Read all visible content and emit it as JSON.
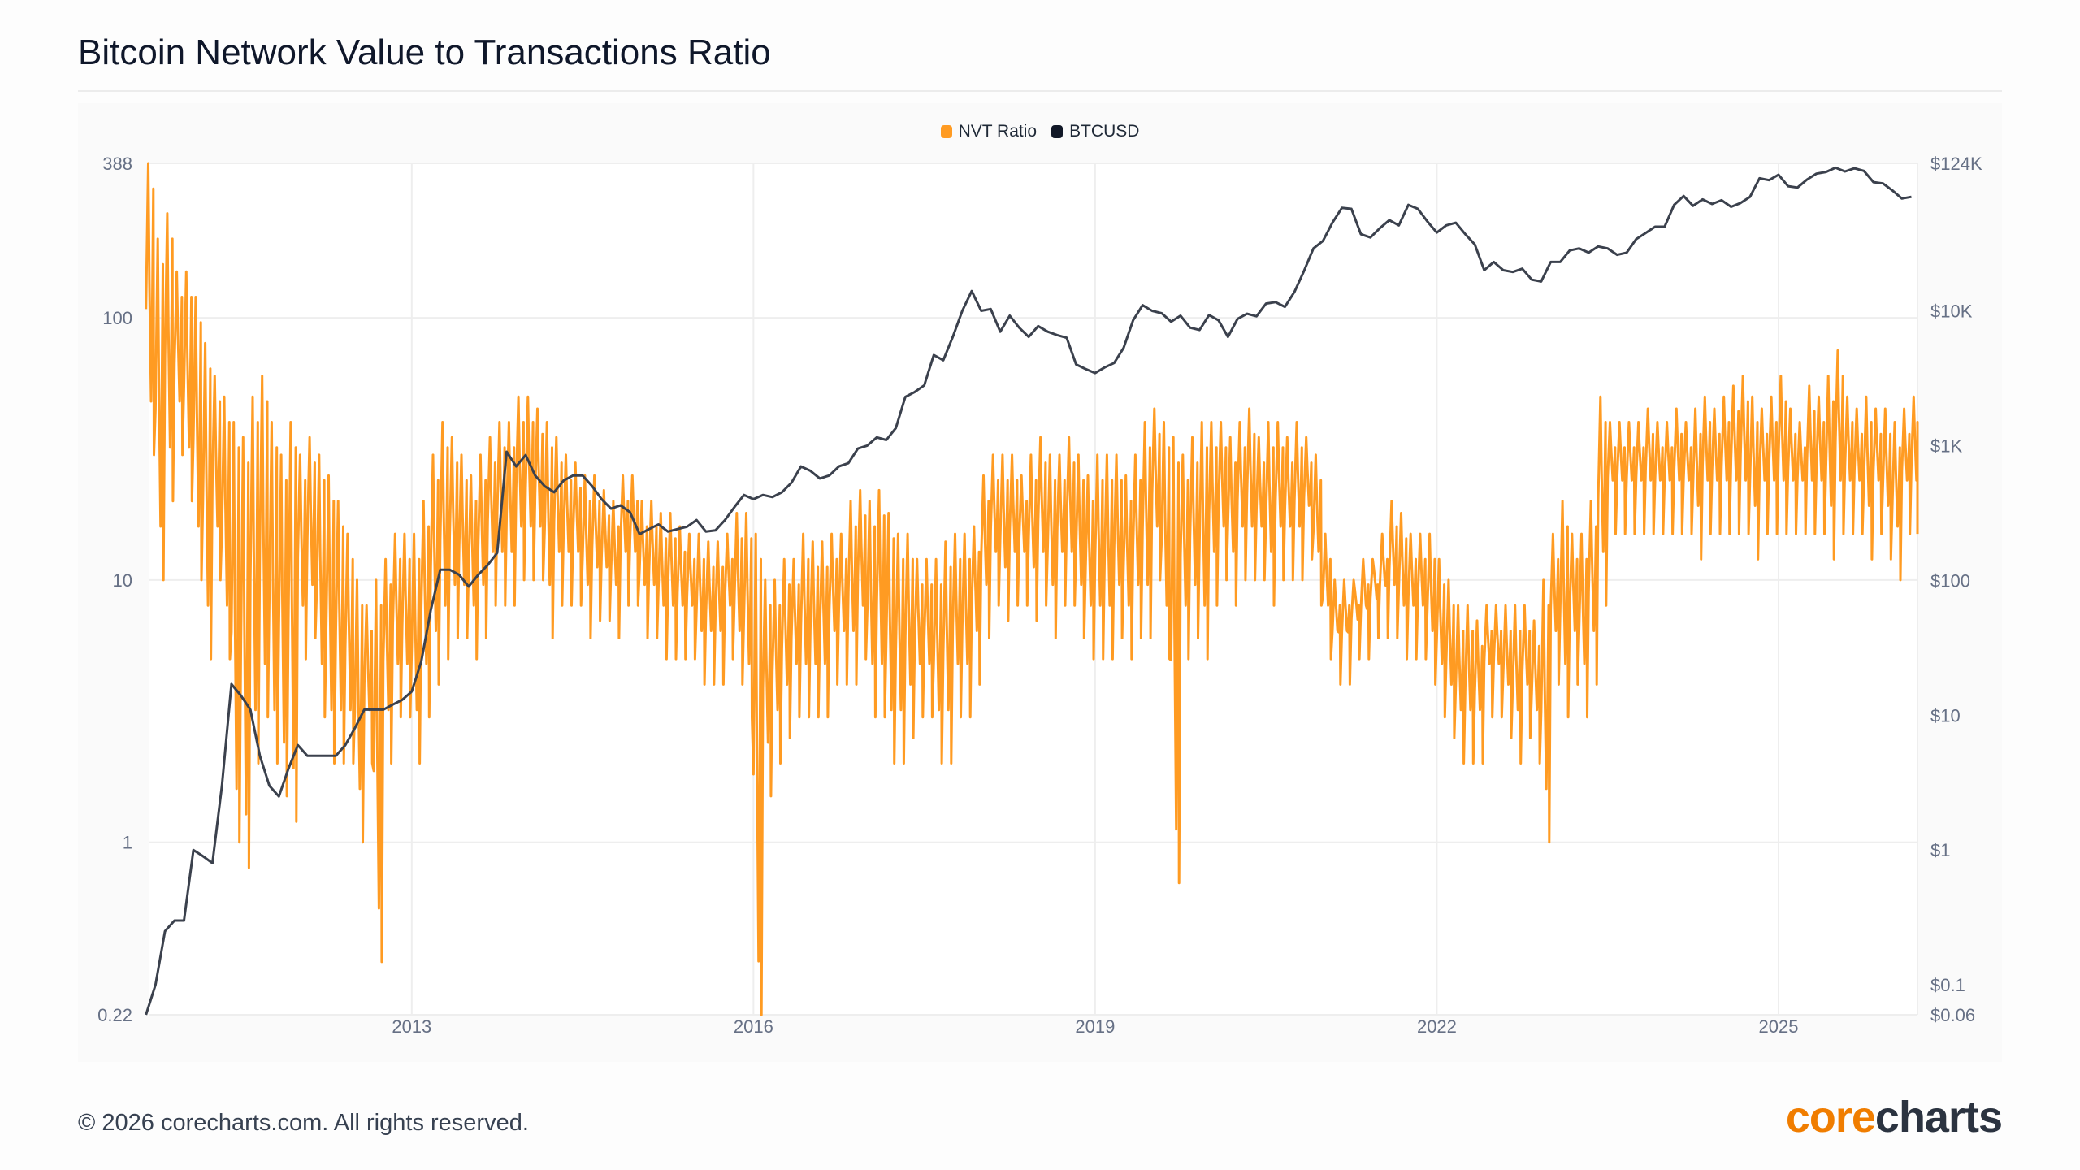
{
  "title": "Bitcoin Network Value to Transactions Ratio",
  "footer": "© 2026 corecharts.com. All rights reserved.",
  "logo": {
    "part1": "core",
    "part2": "charts"
  },
  "watermark": "corecharts",
  "colors": {
    "nvt": "#ff9b22",
    "btc": "#3b414d",
    "axis_text": "#667085",
    "grid": "#eeeeee"
  },
  "chart_data": {
    "type": "line",
    "title": "Bitcoin Network Value to Transactions Ratio",
    "legend": {
      "position": "top-center",
      "entries": [
        "NVT Ratio",
        "BTCUSD"
      ]
    },
    "x_range": [
      2010.69,
      2026.22
    ],
    "x_ticks": [
      "2013",
      "2016",
      "2019",
      "2022",
      "2025"
    ],
    "y_left": {
      "scale": "log",
      "range": [
        0.22,
        388
      ],
      "ticks": [
        388,
        100,
        10,
        1,
        0.22
      ],
      "tick_labels": [
        "388",
        "100",
        "10",
        "1",
        "0.22"
      ]
    },
    "y_right": {
      "scale": "log",
      "range": [
        0.06,
        124000
      ],
      "ticks": [
        124000,
        10000,
        1000,
        100,
        10,
        1,
        0.1,
        0.06
      ],
      "tick_labels": [
        "$124K",
        "$10K",
        "$1K",
        "$100",
        "$10",
        "$1",
        "$0.1",
        "$0.06"
      ]
    },
    "series_start": "2010-09",
    "btc_monthly": [
      0.06,
      0.1,
      0.25,
      0.3,
      0.3,
      1,
      0.9,
      0.8,
      3,
      17,
      14,
      11,
      5,
      3,
      2.5,
      4,
      6,
      5,
      5,
      5,
      5,
      6,
      8,
      11,
      11,
      11,
      12,
      13,
      15,
      25,
      60,
      120,
      120,
      110,
      90,
      110,
      130,
      160,
      900,
      700,
      850,
      600,
      500,
      450,
      550,
      600,
      600,
      500,
      400,
      340,
      360,
      320,
      220,
      240,
      260,
      230,
      240,
      250,
      280,
      230,
      235,
      280,
      350,
      430,
      400,
      430,
      415,
      450,
      530,
      700,
      650,
      570,
      600,
      700,
      740,
      950,
      1000,
      1150,
      1100,
      1350,
      2300,
      2500,
      2800,
      4700,
      4300,
      6400,
      10000,
      14000,
      10000,
      10300,
      7000,
      9200,
      7500,
      6400,
      7700,
      7000,
      6600,
      6300,
      4000,
      3700,
      3450,
      3800,
      4100,
      5300,
      8500,
      11000,
      10000,
      9600,
      8300,
      9200,
      7500,
      7200,
      9300,
      8500,
      6400,
      8700,
      9500,
      9100,
      11300,
      11600,
      10700,
      13800,
      19700,
      29000,
      33000,
      45000,
      58000,
      57000,
      37000,
      35000,
      41000,
      47000,
      43000,
      61000,
      57000,
      46000,
      38000,
      43000,
      45000,
      37000,
      31000,
      20000,
      23000,
      20000,
      19400,
      20500,
      17000,
      16500,
      23000,
      23000,
      28000,
      29000,
      27000,
      30000,
      29000,
      26000,
      27000,
      34000,
      37700,
      42000,
      42000,
      61000,
      71000,
      60000,
      67000,
      62000,
      66000,
      59000,
      63000,
      70000,
      96000,
      93000,
      102000,
      84000,
      82000,
      94000,
      104000,
      107000,
      115000,
      108000,
      114000,
      109000,
      90000,
      88000,
      78000,
      68000,
      70000
    ],
    "nvt_monthly_high": [
      388,
      200,
      250,
      150,
      150,
      120,
      80,
      60,
      50,
      40,
      35,
      50,
      60,
      40,
      30,
      40,
      30,
      35,
      30,
      25,
      20,
      15,
      10,
      8,
      10,
      12,
      15,
      15,
      15,
      20,
      30,
      40,
      35,
      30,
      25,
      30,
      35,
      40,
      40,
      50,
      50,
      45,
      40,
      35,
      30,
      28,
      25,
      25,
      22,
      20,
      25,
      25,
      20,
      20,
      18,
      18,
      16,
      15,
      15,
      14,
      14,
      15,
      18,
      18,
      15,
      10,
      10,
      12,
      12,
      15,
      14,
      14,
      15,
      15,
      20,
      22,
      20,
      22,
      18,
      15,
      15,
      12,
      12,
      12,
      14,
      15,
      15,
      16,
      25,
      30,
      30,
      30,
      25,
      30,
      35,
      30,
      30,
      35,
      30,
      25,
      30,
      30,
      30,
      25,
      30,
      40,
      45,
      40,
      35,
      30,
      35,
      40,
      40,
      40,
      35,
      40,
      45,
      35,
      40,
      40,
      35,
      40,
      35,
      30,
      15,
      10,
      10,
      10,
      12,
      12,
      15,
      20,
      18,
      15,
      15,
      15,
      12,
      10,
      8,
      8,
      7,
      8,
      8,
      8,
      8,
      8,
      7,
      10,
      15,
      20,
      15,
      15,
      20,
      50,
      40,
      40,
      40,
      40,
      45,
      40,
      40,
      45,
      40,
      45,
      50,
      45,
      50,
      55,
      60,
      50,
      45,
      50,
      60,
      45,
      40,
      55,
      50,
      60,
      75,
      50,
      45,
      50,
      45,
      45,
      40,
      45,
      50
    ],
    "nvt_monthly_low": [
      30,
      10,
      20,
      30,
      20,
      10,
      5,
      10,
      5,
      1,
      0.8,
      2,
      3,
      2,
      1.5,
      1.2,
      5,
      6,
      3,
      2,
      2,
      2,
      1,
      2,
      0.35,
      2,
      3,
      3,
      2,
      3,
      4,
      5,
      6,
      6,
      5,
      6,
      8,
      8,
      8,
      10,
      10,
      10,
      6,
      8,
      8,
      8,
      6,
      7,
      7,
      6,
      8,
      8,
      6,
      6,
      5,
      5,
      5,
      5,
      4,
      4,
      4,
      5,
      4,
      3,
      0.22,
      1.5,
      2,
      2.5,
      3,
      3,
      3,
      3,
      4,
      4,
      4,
      5,
      3,
      3,
      2,
      2,
      2.5,
      3,
      3,
      2,
      2,
      3,
      3,
      4,
      6,
      8,
      7,
      8,
      8,
      7,
      8,
      6,
      8,
      8,
      6,
      5,
      5,
      5,
      6,
      5,
      6,
      6,
      10,
      5,
      0.7,
      5,
      6,
      5,
      8,
      10,
      8,
      10,
      10,
      10,
      8,
      10,
      10,
      10,
      12,
      8,
      5,
      4,
      4,
      5,
      5,
      6,
      6,
      6,
      5,
      5,
      5,
      4,
      3,
      2.5,
      2,
      2,
      2,
      3,
      3,
      2.5,
      2,
      2.5,
      2,
      1,
      4,
      3,
      4,
      3,
      4,
      8,
      15,
      15,
      15,
      15,
      15,
      15,
      15,
      15,
      15,
      12,
      15,
      15,
      15,
      15,
      15,
      12,
      15,
      15,
      15,
      15,
      15,
      15,
      15,
      12,
      15,
      15,
      15,
      12,
      15,
      12,
      10,
      15,
      15
    ]
  }
}
